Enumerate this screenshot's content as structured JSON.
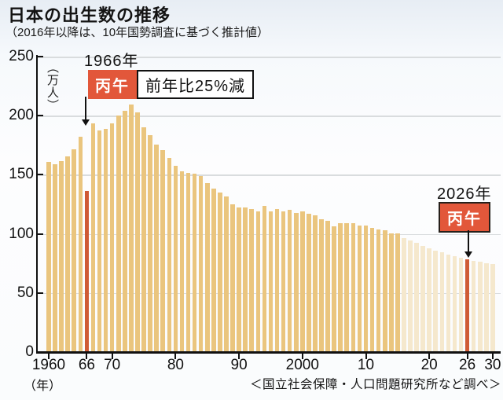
{
  "header": {
    "title": "日本の出生数の推移",
    "subtitle": "（2016年以降は、10年国勢調査に基づく推計値）"
  },
  "chart_data": {
    "type": "bar",
    "title": "日本の出生数の推移",
    "ylabel": "（万人）",
    "xlabel": "（年）",
    "ylim": [
      0,
      250
    ],
    "grid": true,
    "start_year": 1960,
    "end_year": 2030,
    "estimated_from_year": 2016,
    "highlight_years": [
      1966,
      2026
    ],
    "yticks": [
      {
        "value": 0,
        "label": "0"
      },
      {
        "value": 50,
        "label": "50"
      },
      {
        "value": 100,
        "label": "100"
      },
      {
        "value": 150,
        "label": "150"
      },
      {
        "value": 200,
        "label": "200"
      },
      {
        "value": 250,
        "label": "250"
      }
    ],
    "xticks": [
      {
        "year": 1960,
        "label": "1960"
      },
      {
        "year": 1966,
        "label": "66"
      },
      {
        "year": 1970,
        "label": "70"
      },
      {
        "year": 1980,
        "label": "80"
      },
      {
        "year": 1990,
        "label": "90"
      },
      {
        "year": 2000,
        "label": "2000"
      },
      {
        "year": 2010,
        "label": "10"
      },
      {
        "year": 2020,
        "label": "20"
      },
      {
        "year": 2026,
        "label": "26"
      },
      {
        "year": 2030,
        "label": "30"
      }
    ],
    "values": [
      160.6,
      158.9,
      161.9,
      165.9,
      171.7,
      182.4,
      136.1,
      193.6,
      187.2,
      188.9,
      193.4,
      200.1,
      203.9,
      209.2,
      203.0,
      190.1,
      183.3,
      175.5,
      170.9,
      164.3,
      157.7,
      152.9,
      151.5,
      150.9,
      148.9,
      143.2,
      138.3,
      134.7,
      131.4,
      124.7,
      122.2,
      122.3,
      120.9,
      118.8,
      123.8,
      118.7,
      120.7,
      119.2,
      120.3,
      117.8,
      119.1,
      117.1,
      115.4,
      112.4,
      111.1,
      106.3,
      109.3,
      109.0,
      109.1,
      107.0,
      107.1,
      105.1,
      103.7,
      103.0,
      100.4,
      100.6,
      96.5,
      94.3,
      92.1,
      90.0,
      88.0,
      86.1,
      84.2,
      82.5,
      80.9,
      79.5,
      78.3,
      77.2,
      76.2,
      75.3,
      74.5
    ],
    "colors": {
      "actual": "#eac57e",
      "estimated": "#f5e8cd",
      "highlight": "#cf5a35",
      "badge_bg": "#e2573a",
      "gridline": "#d9dcde"
    }
  },
  "annotations": {
    "a1966": {
      "year_label": "1966年",
      "badge": "丙午",
      "note": "前年比25%減"
    },
    "a2026": {
      "year_label": "2026年",
      "badge": "丙午"
    }
  },
  "footer": {
    "x_unit": "（年）",
    "source": "＜国立社会保障・人口問題研究所など調べ＞"
  }
}
